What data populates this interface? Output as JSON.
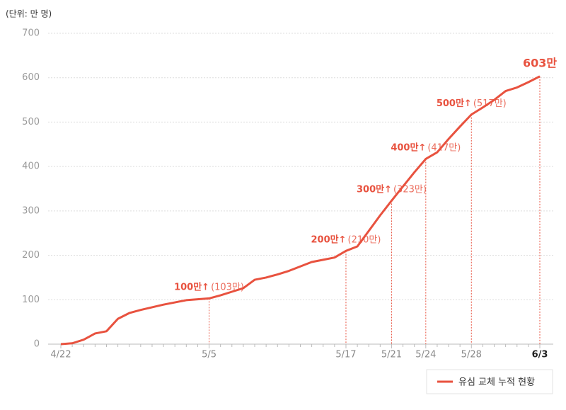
{
  "chart_data": {
    "type": "line",
    "unit_label": "(단위: 만 명)",
    "categories": [
      "4/22",
      null,
      null,
      null,
      null,
      null,
      null,
      null,
      null,
      null,
      null,
      null,
      null,
      "5/5",
      null,
      null,
      null,
      null,
      null,
      null,
      null,
      null,
      null,
      null,
      null,
      "5/17",
      null,
      null,
      null,
      "5/21",
      null,
      null,
      "5/24",
      null,
      null,
      null,
      "5/28",
      null,
      null,
      null,
      null,
      null,
      "6/3"
    ],
    "series": [
      {
        "name": "유심 교체 누적 현황",
        "color": "#e8523f",
        "values": [
          0,
          2,
          10,
          24,
          29,
          57,
          70,
          77,
          83,
          89,
          94,
          99,
          101,
          103,
          110,
          118,
          126,
          145,
          150,
          157,
          165,
          175,
          185,
          190,
          195,
          210,
          220,
          255,
          290,
          323,
          355,
          387,
          417,
          432,
          462,
          490,
          517,
          533,
          550,
          570,
          578,
          590,
          603
        ]
      }
    ],
    "ylim": [
      0,
      700
    ],
    "yticks": [
      0,
      100,
      200,
      300,
      400,
      500,
      600,
      700
    ],
    "grid": true,
    "annotations": [
      {
        "x": "5/5",
        "text": "100만↑",
        "detail": "(103만)"
      },
      {
        "x": "5/17",
        "text": "200만↑",
        "detail": "(210만)"
      },
      {
        "x": "5/21",
        "text": "300만↑",
        "detail": "(323만)"
      },
      {
        "x": "5/24",
        "text": "400만↑",
        "detail": "(417만)"
      },
      {
        "x": "5/28",
        "text": "500만↑",
        "detail": "(517만)"
      },
      {
        "x": "6/3",
        "text": "603만"
      }
    ]
  }
}
